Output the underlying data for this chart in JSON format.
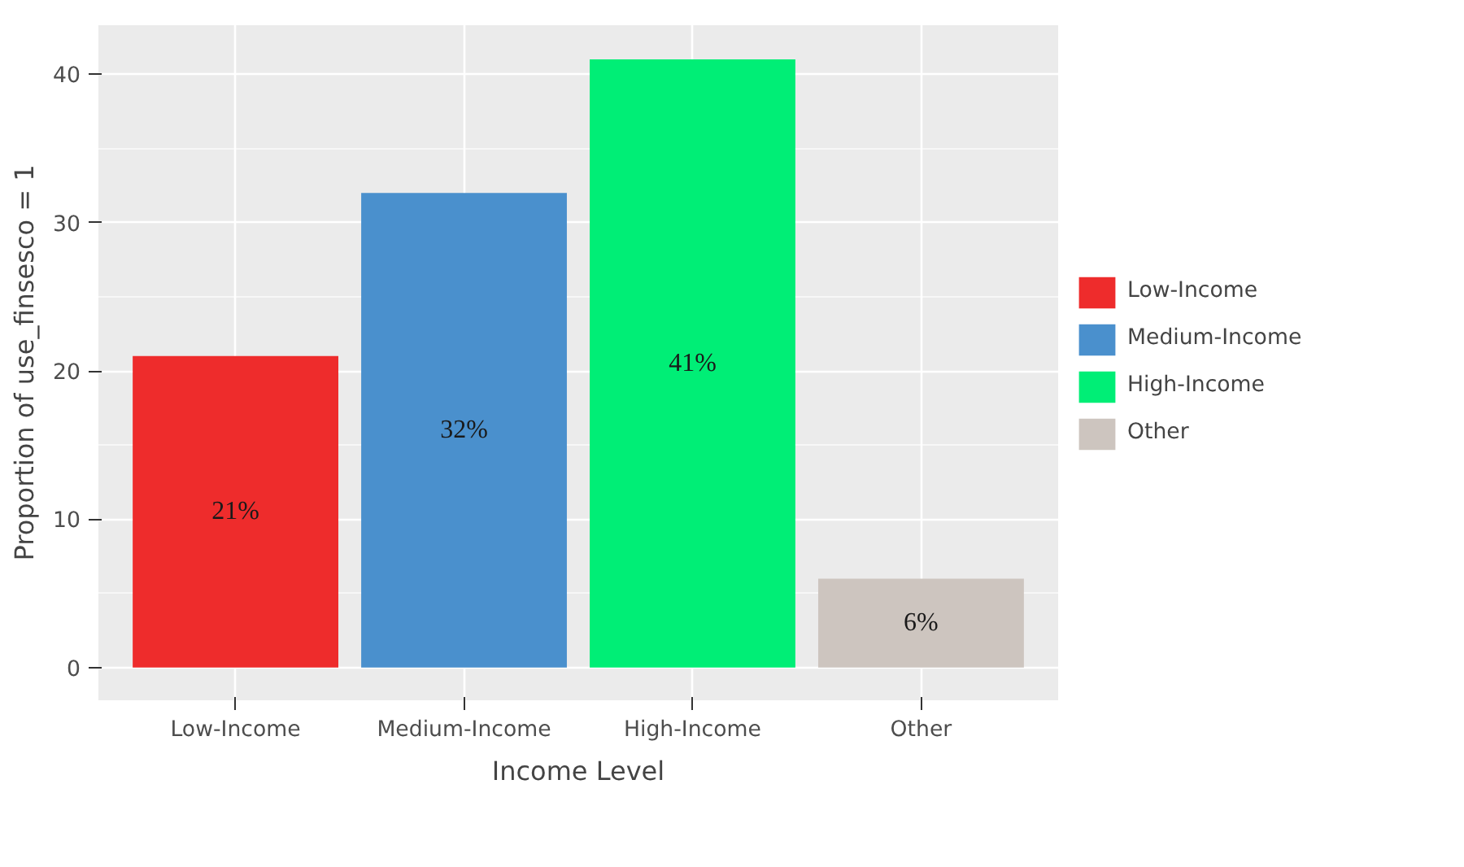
{
  "chart_data": {
    "type": "bar",
    "xlabel": "Income Level",
    "ylabel": "Proportion of use_finsesco = 1",
    "categories": [
      "Low-Income",
      "Medium-Income",
      "High-Income",
      "Other"
    ],
    "stacked": true,
    "series": [
      {
        "name": "Low-Income",
        "color": "#ee2c2c",
        "values": [
          21,
          null,
          null,
          null
        ],
        "value_labels": [
          "21%",
          null,
          null,
          null
        ]
      },
      {
        "name": "Medium-Income",
        "color": "#4a90cd",
        "values": [
          null,
          32,
          null,
          null
        ],
        "value_labels": [
          null,
          "32%",
          null,
          null
        ]
      },
      {
        "name": "High-Income",
        "color": "#00ee76",
        "values": [
          null,
          null,
          41,
          null
        ],
        "value_labels": [
          null,
          null,
          "41%",
          null
        ]
      },
      {
        "name": "Other",
        "color": "#cdc5bf",
        "values": [
          null,
          null,
          null,
          6
        ],
        "value_labels": [
          null,
          null,
          null,
          "6%"
        ]
      }
    ],
    "ylim": [
      -2.2,
      43.3
    ],
    "yticks": [
      0,
      10,
      20,
      30,
      40
    ],
    "grid": true,
    "legend": "right"
  }
}
